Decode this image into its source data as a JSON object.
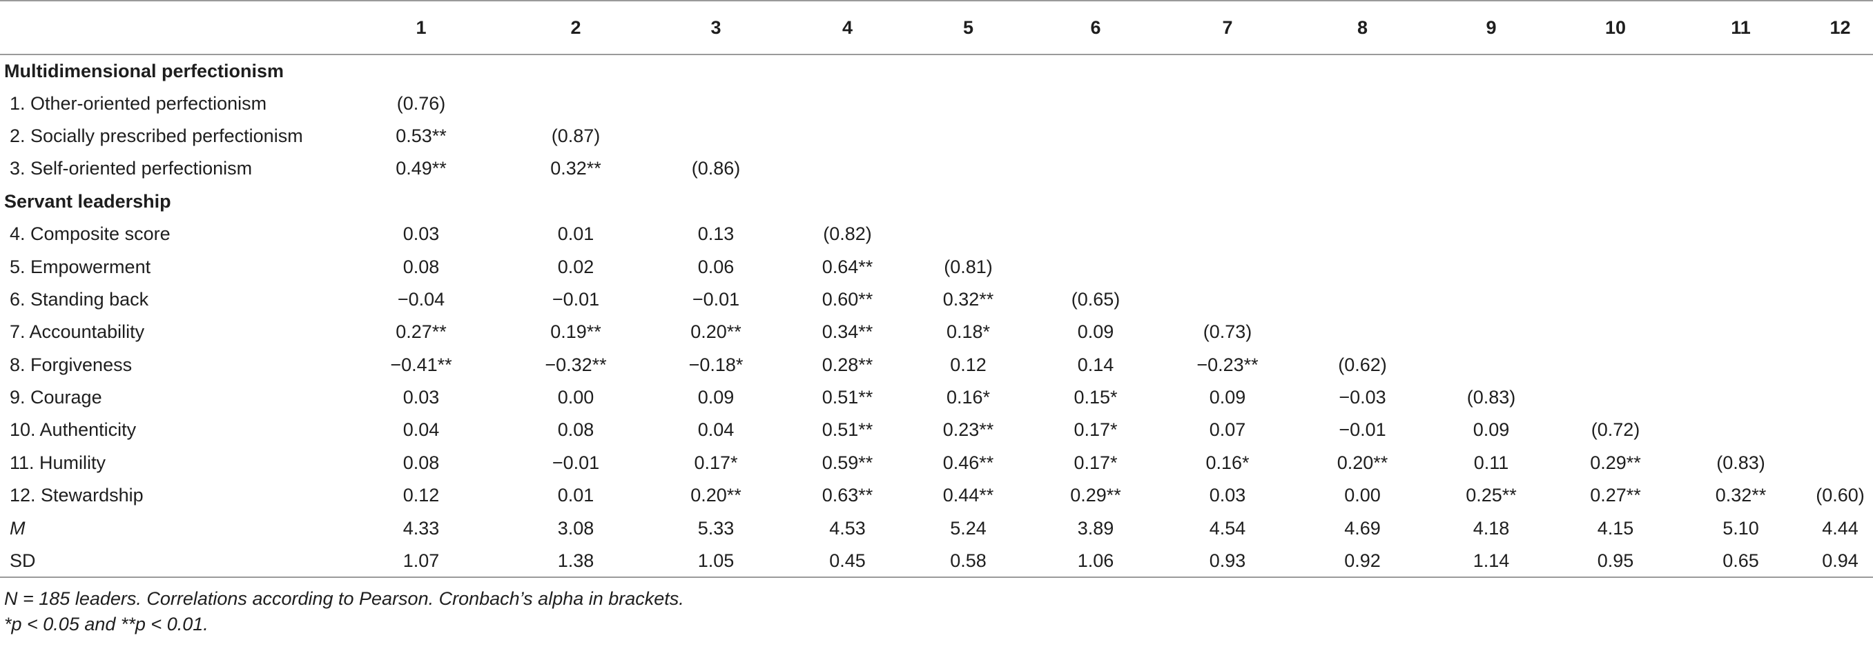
{
  "columns": [
    "",
    "1",
    "2",
    "3",
    "4",
    "5",
    "6",
    "7",
    "8",
    "9",
    "10",
    "11",
    "12"
  ],
  "rows": [
    {
      "type": "section",
      "label": "Multidimensional perfectionism"
    },
    {
      "type": "data",
      "label": "1. Other-oriented perfectionism",
      "values": [
        "(0.76)"
      ]
    },
    {
      "type": "data",
      "label": "2. Socially prescribed perfectionism",
      "values": [
        "0.53**",
        "(0.87)"
      ]
    },
    {
      "type": "data",
      "label": "3. Self-oriented perfectionism",
      "values": [
        "0.49**",
        "0.32**",
        "(0.86)"
      ]
    },
    {
      "type": "section",
      "label": "Servant leadership"
    },
    {
      "type": "data",
      "label": "4. Composite score",
      "values": [
        "0.03",
        "0.01",
        "0.13",
        "(0.82)"
      ]
    },
    {
      "type": "data",
      "label": "5. Empowerment",
      "values": [
        "0.08",
        "0.02",
        "0.06",
        "0.64**",
        "(0.81)"
      ]
    },
    {
      "type": "data",
      "label": "6. Standing back",
      "values": [
        "−0.04",
        "−0.01",
        "−0.01",
        "0.60**",
        "0.32**",
        "(0.65)"
      ]
    },
    {
      "type": "data",
      "label": "7. Accountability",
      "values": [
        "0.27**",
        "0.19**",
        "0.20**",
        "0.34**",
        "0.18*",
        "0.09",
        "(0.73)"
      ]
    },
    {
      "type": "data",
      "label": "8. Forgiveness",
      "values": [
        "−0.41**",
        "−0.32**",
        "−0.18*",
        "0.28**",
        "0.12",
        "0.14",
        "−0.23**",
        "(0.62)"
      ]
    },
    {
      "type": "data",
      "label": "9. Courage",
      "values": [
        "0.03",
        "0.00",
        "0.09",
        "0.51**",
        "0.16*",
        "0.15*",
        "0.09",
        "−0.03",
        "(0.83)"
      ]
    },
    {
      "type": "data",
      "label": "10. Authenticity",
      "values": [
        "0.04",
        "0.08",
        "0.04",
        "0.51**",
        "0.23**",
        "0.17*",
        "0.07",
        "−0.01",
        "0.09",
        "(0.72)"
      ]
    },
    {
      "type": "data",
      "label": "11. Humility",
      "values": [
        "0.08",
        "−0.01",
        "0.17*",
        "0.59**",
        "0.46**",
        "0.17*",
        "0.16*",
        "0.20**",
        "0.11",
        "0.29**",
        "(0.83)"
      ]
    },
    {
      "type": "data",
      "label": "12. Stewardship",
      "values": [
        "0.12",
        "0.01",
        "0.20**",
        "0.63**",
        "0.44**",
        "0.29**",
        "0.03",
        "0.00",
        "0.25**",
        "0.27**",
        "0.32**",
        "(0.60)"
      ]
    },
    {
      "type": "data",
      "label": "M",
      "italic": true,
      "values": [
        "4.33",
        "3.08",
        "5.33",
        "4.53",
        "5.24",
        "3.89",
        "4.54",
        "4.69",
        "4.18",
        "4.15",
        "5.10",
        "4.44"
      ]
    },
    {
      "type": "data",
      "label": "SD",
      "values": [
        "1.07",
        "1.38",
        "1.05",
        "0.45",
        "0.58",
        "1.06",
        "0.93",
        "0.92",
        "1.14",
        "0.95",
        "0.65",
        "0.94"
      ]
    }
  ],
  "notes": [
    "N = 185 leaders. Correlations according to Pearson. Cronbach’s alpha in brackets.",
    "*p < 0.05 and **p < 0.01."
  ]
}
